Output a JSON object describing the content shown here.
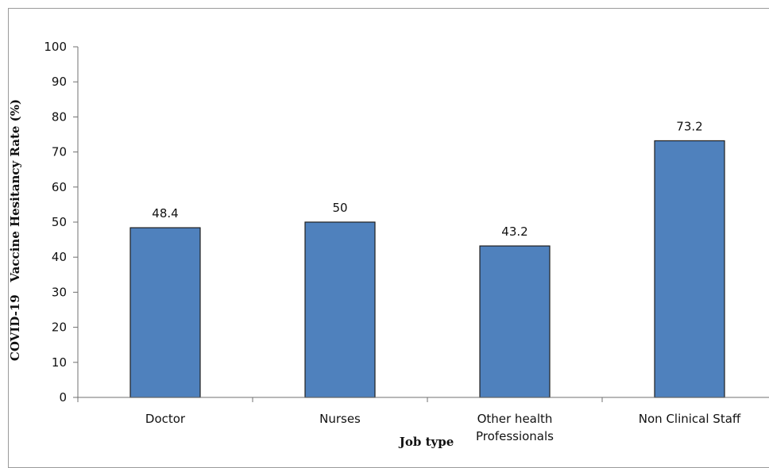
{
  "chart_data": {
    "type": "bar",
    "title": "",
    "xlabel": "Job type",
    "ylabel": "COVID-19   Vaccine Hesitancy Rate (%)",
    "categories": [
      [
        "Doctor"
      ],
      [
        "Nurses"
      ],
      [
        "Other health",
        "Professionals"
      ],
      [
        "Non Clinical Staff"
      ]
    ],
    "values": [
      48.4,
      50,
      43.2,
      73.2
    ],
    "value_labels": [
      "48.4",
      "50",
      "43.2",
      "73.2"
    ],
    "ylim": [
      0,
      100
    ],
    "yticks": [
      0,
      10,
      20,
      30,
      40,
      50,
      60,
      70,
      80,
      90,
      100
    ],
    "grid": false,
    "legend": "none",
    "colors": {
      "bar_fill": "#4f81bd",
      "bar_stroke": "#1f1f1f",
      "axis": "#707070"
    }
  }
}
